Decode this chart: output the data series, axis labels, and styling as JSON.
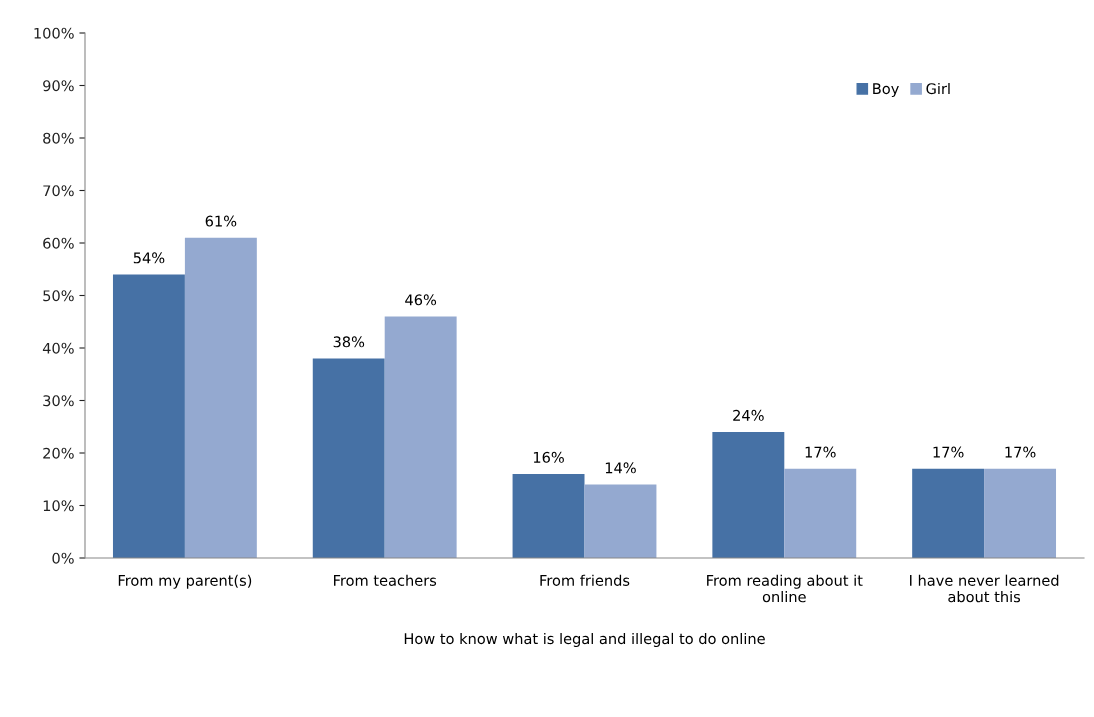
{
  "chart_data": {
    "type": "bar",
    "categories": [
      "From my parent(s)",
      "From teachers",
      "From friends",
      "From reading about it\nonline",
      "I have never learned\nabout this"
    ],
    "series": [
      {
        "name": "Boy",
        "color": "#4671a5",
        "values": [
          54,
          38,
          16,
          24,
          17
        ],
        "value_labels": [
          "54%",
          "38%",
          "16%",
          "24%",
          "17%"
        ]
      },
      {
        "name": "Girl",
        "color": "#94a9d0",
        "values": [
          61,
          46,
          14,
          17,
          17
        ],
        "value_labels": [
          "61%",
          "46%",
          "14%",
          "17%",
          "17%"
        ]
      }
    ],
    "xlabel": "How to know what is legal and illegal to do online",
    "ylim": [
      0,
      100
    ],
    "yticks": [
      {
        "value": 0,
        "label": "0%"
      },
      {
        "value": 10,
        "label": "10%"
      },
      {
        "value": 20,
        "label": "20%"
      },
      {
        "value": 30,
        "label": "30%"
      },
      {
        "value": 40,
        "label": "40%"
      },
      {
        "value": 50,
        "label": "50%"
      },
      {
        "value": 60,
        "label": "60%"
      },
      {
        "value": 70,
        "label": "70%"
      },
      {
        "value": 80,
        "label": "80%"
      },
      {
        "value": 90,
        "label": "90%"
      },
      {
        "value": 100,
        "label": "100%"
      }
    ],
    "grid": false,
    "legend": "top right"
  }
}
